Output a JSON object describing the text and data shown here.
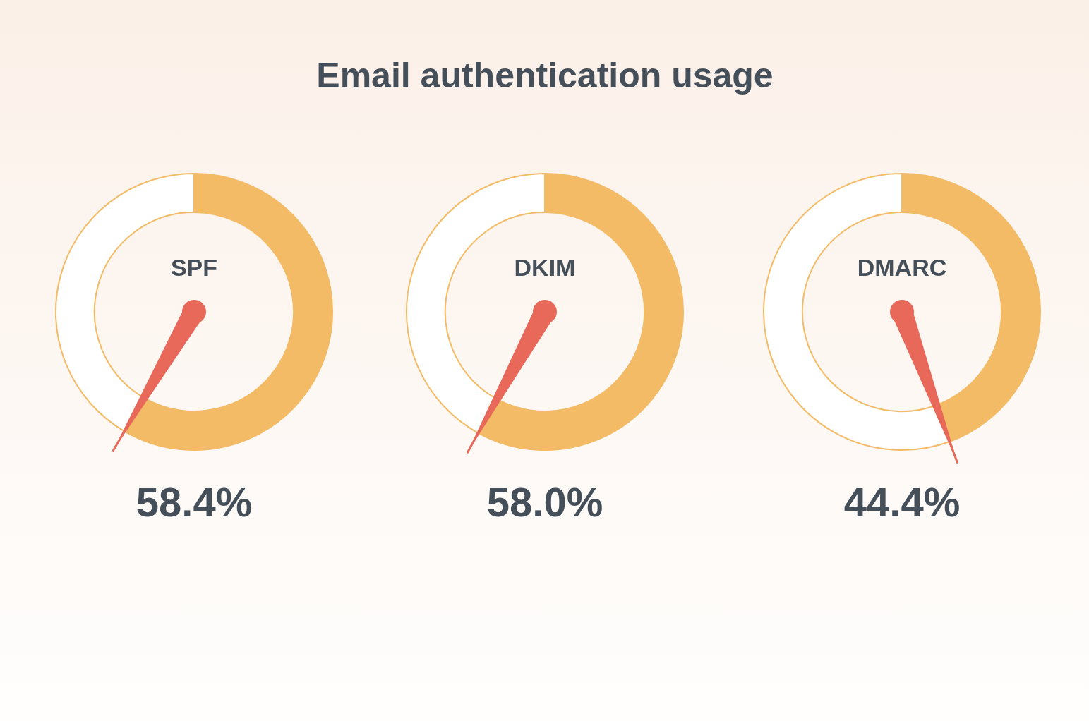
{
  "chart_data": [
    {
      "type": "donut",
      "subtitle": "SPF",
      "categories": [
        null,
        null
      ],
      "values": [
        58.4,
        41.6
      ],
      "colors": [
        "#f4bb67",
        "#ffffff"
      ],
      "annotations": [
        "58.4%"
      ]
    },
    {
      "type": "donut",
      "title": "Email authentication usage",
      "subtitle": "DKIM",
      "categories": [
        null,
        null
      ],
      "values": [
        58.0,
        42.0
      ],
      "colors": [
        "#f4bb67",
        "#ffffff"
      ],
      "annotations": [
        "58.0%"
      ]
    },
    {
      "type": "donut",
      "subtitle": "DMARC",
      "categories": [
        null,
        null
      ],
      "values": [
        44.4,
        55.6
      ],
      "colors": [
        "#f4bb67",
        "#ffffff"
      ],
      "annotations": [
        "44.4%"
      ]
    }
  ]
}
